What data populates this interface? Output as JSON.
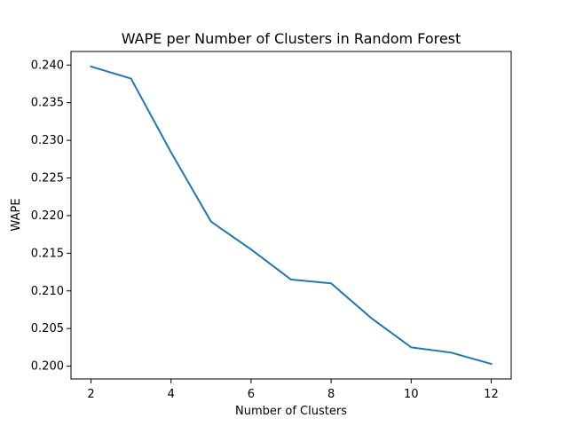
{
  "chart_data": {
    "type": "line",
    "title": "WAPE per Number of Clusters in Random Forest",
    "xlabel": "Number of Clusters",
    "ylabel": "WAPE",
    "x": [
      2,
      3,
      4,
      5,
      6,
      7,
      8,
      9,
      10,
      11,
      12
    ],
    "series": [
      {
        "values": [
          0.2398,
          0.2382,
          0.2284,
          0.2192,
          0.2155,
          0.2115,
          0.211,
          0.2064,
          0.2025,
          0.2018,
          0.2003
        ],
        "color": "#1f77b4"
      }
    ],
    "xticks": [
      2,
      4,
      6,
      8,
      10,
      12
    ],
    "xtick_labels": [
      "2",
      "4",
      "6",
      "8",
      "10",
      "12"
    ],
    "yticks": [
      0.2,
      0.205,
      0.21,
      0.215,
      0.22,
      0.225,
      0.23,
      0.235,
      0.24
    ],
    "ytick_labels": [
      "0.200",
      "0.205",
      "0.210",
      "0.215",
      "0.220",
      "0.225",
      "0.230",
      "0.235",
      "0.240"
    ],
    "xlim": [
      1.5,
      12.5
    ],
    "ylim": [
      0.1983,
      0.2418
    ],
    "grid": false,
    "legend": "none"
  }
}
